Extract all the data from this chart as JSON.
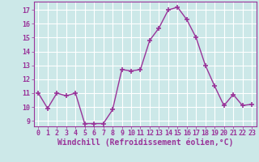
{
  "x": [
    0,
    1,
    2,
    3,
    4,
    5,
    6,
    7,
    8,
    9,
    10,
    11,
    12,
    13,
    14,
    15,
    16,
    17,
    18,
    19,
    20,
    21,
    22,
    23
  ],
  "y": [
    11,
    9.9,
    11,
    10.8,
    11,
    8.8,
    8.8,
    8.8,
    9.8,
    12.7,
    12.6,
    12.7,
    14.8,
    15.7,
    17.0,
    17.2,
    16.3,
    15.0,
    13.0,
    11.5,
    10.1,
    10.9,
    10.1,
    10.2
  ],
  "line_color": "#993399",
  "marker": "+",
  "marker_size": 4,
  "marker_linewidth": 1.2,
  "line_width": 1.0,
  "bg_color": "#cce8e8",
  "grid_color": "#ffffff",
  "xlabel": "Windchill (Refroidissement éolien,°C)",
  "xlabel_fontsize": 7,
  "xlim": [
    -0.5,
    23.5
  ],
  "ylim": [
    8.6,
    17.6
  ],
  "yticks": [
    9,
    10,
    11,
    12,
    13,
    14,
    15,
    16,
    17
  ],
  "xticks": [
    0,
    1,
    2,
    3,
    4,
    5,
    6,
    7,
    8,
    9,
    10,
    11,
    12,
    13,
    14,
    15,
    16,
    17,
    18,
    19,
    20,
    21,
    22,
    23
  ],
  "tick_fontsize": 6,
  "tick_color": "#993399",
  "spine_color": "#993399"
}
